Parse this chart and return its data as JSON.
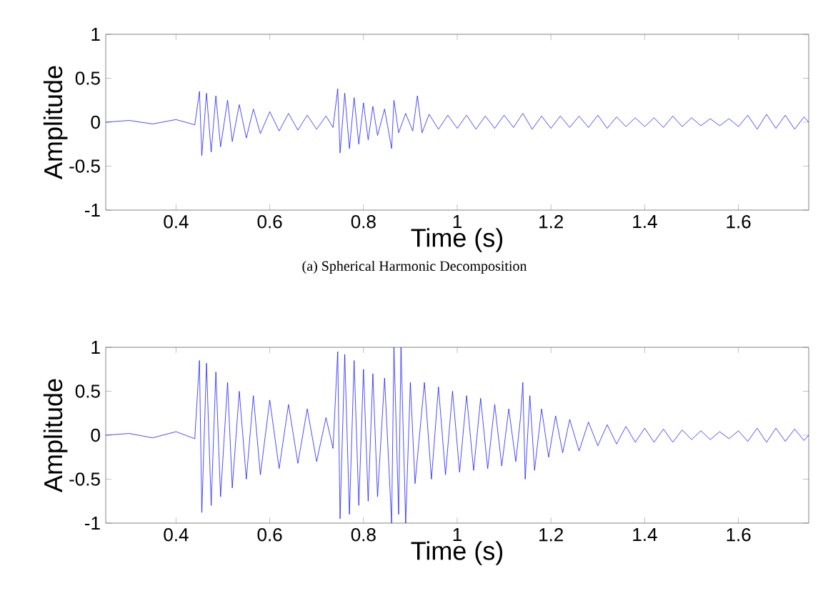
{
  "chart_data": [
    {
      "type": "line",
      "xlabel": "Time (s)",
      "ylabel": "Amplitude",
      "xlim": [
        0.25,
        1.75
      ],
      "ylim": [
        -1,
        1
      ],
      "xticks": [
        0.4,
        0.6,
        0.8,
        1,
        1.2,
        1.4,
        1.6
      ],
      "yticks": [
        -1,
        -0.5,
        0,
        0.5,
        1
      ],
      "annotations": [
        "(a) Spherical Harmonic Decomposition"
      ],
      "x": [
        0.25,
        0.3,
        0.35,
        0.4,
        0.44,
        0.45,
        0.455,
        0.465,
        0.475,
        0.485,
        0.495,
        0.51,
        0.52,
        0.535,
        0.55,
        0.565,
        0.58,
        0.6,
        0.62,
        0.64,
        0.66,
        0.68,
        0.7,
        0.72,
        0.735,
        0.745,
        0.75,
        0.76,
        0.77,
        0.78,
        0.79,
        0.8,
        0.81,
        0.82,
        0.83,
        0.845,
        0.86,
        0.865,
        0.875,
        0.89,
        0.905,
        0.915,
        0.925,
        0.94,
        0.96,
        0.98,
        1.0,
        1.02,
        1.04,
        1.06,
        1.08,
        1.1,
        1.12,
        1.14,
        1.16,
        1.18,
        1.2,
        1.22,
        1.24,
        1.26,
        1.28,
        1.3,
        1.32,
        1.34,
        1.36,
        1.38,
        1.4,
        1.42,
        1.44,
        1.46,
        1.48,
        1.5,
        1.52,
        1.54,
        1.56,
        1.58,
        1.6,
        1.62,
        1.64,
        1.66,
        1.68,
        1.7,
        1.72,
        1.74,
        1.75
      ],
      "series": [
        {
          "color": "#0000ff",
          "values": [
            0.0,
            0.02,
            -0.02,
            0.03,
            -0.03,
            0.35,
            -0.38,
            0.33,
            -0.34,
            0.3,
            -0.28,
            0.25,
            -0.22,
            0.2,
            -0.18,
            0.15,
            -0.13,
            0.12,
            -0.1,
            0.1,
            -0.09,
            0.08,
            -0.08,
            0.07,
            -0.06,
            0.38,
            -0.35,
            0.33,
            -0.3,
            0.28,
            -0.25,
            0.22,
            -0.2,
            0.18,
            -0.15,
            0.15,
            -0.3,
            0.25,
            -0.12,
            0.1,
            -0.1,
            0.3,
            -0.12,
            0.09,
            -0.08,
            0.08,
            -0.07,
            0.08,
            -0.08,
            0.07,
            -0.07,
            0.08,
            -0.06,
            0.1,
            -0.08,
            0.07,
            -0.07,
            0.07,
            -0.06,
            0.07,
            -0.06,
            0.08,
            -0.07,
            0.06,
            -0.05,
            0.05,
            -0.05,
            0.05,
            -0.06,
            0.07,
            -0.05,
            0.05,
            -0.04,
            0.04,
            -0.04,
            0.04,
            -0.05,
            0.08,
            -0.08,
            0.09,
            -0.07,
            0.08,
            -0.08,
            0.06,
            0.0
          ]
        }
      ]
    },
    {
      "type": "line",
      "xlabel": "Time (s)",
      "ylabel": "Amplitude",
      "xlim": [
        0.25,
        1.75
      ],
      "ylim": [
        -1,
        1
      ],
      "xticks": [
        0.4,
        0.6,
        0.8,
        1,
        1.2,
        1.4,
        1.6
      ],
      "yticks": [
        -1,
        -0.5,
        0,
        0.5,
        1
      ],
      "x": [
        0.25,
        0.3,
        0.35,
        0.4,
        0.44,
        0.45,
        0.455,
        0.465,
        0.475,
        0.485,
        0.495,
        0.51,
        0.52,
        0.535,
        0.55,
        0.565,
        0.58,
        0.6,
        0.62,
        0.64,
        0.66,
        0.68,
        0.7,
        0.72,
        0.735,
        0.745,
        0.75,
        0.76,
        0.77,
        0.78,
        0.79,
        0.8,
        0.81,
        0.82,
        0.83,
        0.845,
        0.86,
        0.865,
        0.875,
        0.88,
        0.89,
        0.9,
        0.91,
        0.93,
        0.945,
        0.96,
        0.975,
        0.99,
        1.005,
        1.02,
        1.035,
        1.05,
        1.065,
        1.08,
        1.095,
        1.11,
        1.125,
        1.135,
        1.14,
        1.145,
        1.155,
        1.165,
        1.18,
        1.195,
        1.21,
        1.225,
        1.24,
        1.26,
        1.28,
        1.3,
        1.32,
        1.34,
        1.36,
        1.38,
        1.4,
        1.42,
        1.44,
        1.46,
        1.48,
        1.5,
        1.52,
        1.54,
        1.56,
        1.58,
        1.6,
        1.62,
        1.64,
        1.66,
        1.68,
        1.7,
        1.72,
        1.74,
        1.75
      ],
      "series": [
        {
          "color": "#0000ff",
          "values": [
            0,
            0.02,
            -0.03,
            0.04,
            -0.04,
            0.85,
            -0.88,
            0.82,
            -0.8,
            0.72,
            -0.7,
            0.6,
            -0.6,
            0.5,
            -0.5,
            0.45,
            -0.45,
            0.4,
            -0.38,
            0.35,
            -0.32,
            0.3,
            -0.3,
            0.2,
            -0.15,
            0.95,
            -0.95,
            0.92,
            -0.9,
            0.85,
            -0.8,
            0.75,
            -0.75,
            0.7,
            -0.7,
            0.65,
            -1.0,
            1.0,
            -0.9,
            1.0,
            -1.0,
            0.6,
            -0.55,
            0.6,
            -0.5,
            0.55,
            -0.45,
            0.5,
            -0.42,
            0.45,
            -0.4,
            0.42,
            -0.38,
            0.35,
            -0.35,
            0.3,
            -0.3,
            0.2,
            0.6,
            -0.5,
            0.45,
            -0.4,
            0.3,
            -0.25,
            0.22,
            -0.2,
            0.18,
            -0.18,
            0.15,
            -0.12,
            0.12,
            -0.1,
            0.1,
            -0.08,
            0.08,
            -0.08,
            0.07,
            -0.08,
            0.06,
            -0.05,
            0.05,
            -0.05,
            0.04,
            -0.04,
            0.05,
            -0.07,
            0.08,
            -0.08,
            0.08,
            -0.07,
            0.07,
            -0.06,
            0
          ]
        }
      ]
    }
  ]
}
